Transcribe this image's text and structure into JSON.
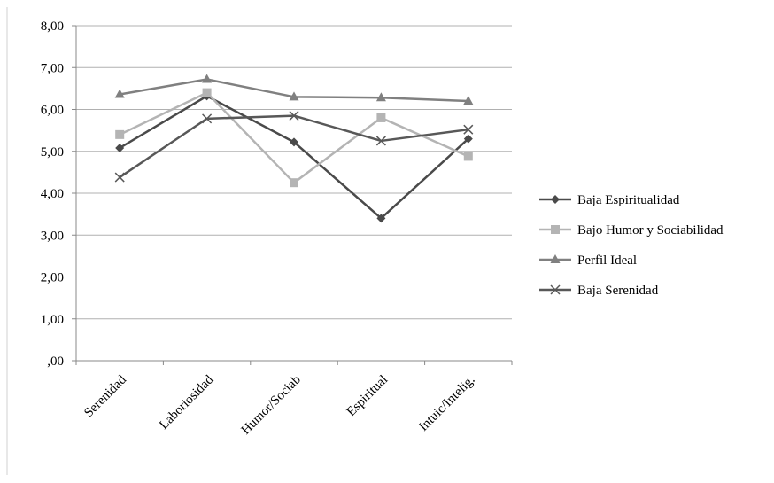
{
  "chart_data": {
    "type": "line",
    "title": "",
    "xlabel": "",
    "ylabel": "",
    "categories": [
      "Serenidad",
      "Laboriosidad",
      "Humor/Sociab",
      "Espiritual",
      "Intuic/Intelig."
    ],
    "ylim": [
      0,
      8
    ],
    "y_ticks": [
      ",00",
      "1,00",
      "2,00",
      "3,00",
      "4,00",
      "5,00",
      "6,00",
      "7,00",
      "8,00"
    ],
    "y_tick_values": [
      0,
      1,
      2,
      3,
      4,
      5,
      6,
      7,
      8
    ],
    "grid": "horizontal",
    "legend_position": "right",
    "series": [
      {
        "name": "Baja Espiritualidad",
        "values": [
          5.08,
          6.32,
          5.22,
          3.4,
          5.3
        ],
        "color": "#4a4a4a",
        "marker": "diamond"
      },
      {
        "name": "Bajo Humor y Sociabilidad",
        "values": [
          5.4,
          6.4,
          4.25,
          5.8,
          4.88
        ],
        "color": "#b4b4b4",
        "marker": "square"
      },
      {
        "name": "Perfil Ideal",
        "values": [
          6.36,
          6.72,
          6.3,
          6.28,
          6.2
        ],
        "color": "#808080",
        "marker": "triangle"
      },
      {
        "name": "Baja Serenidad",
        "values": [
          4.38,
          5.78,
          5.85,
          5.25,
          5.52
        ],
        "color": "#585858",
        "marker": "x"
      }
    ]
  }
}
